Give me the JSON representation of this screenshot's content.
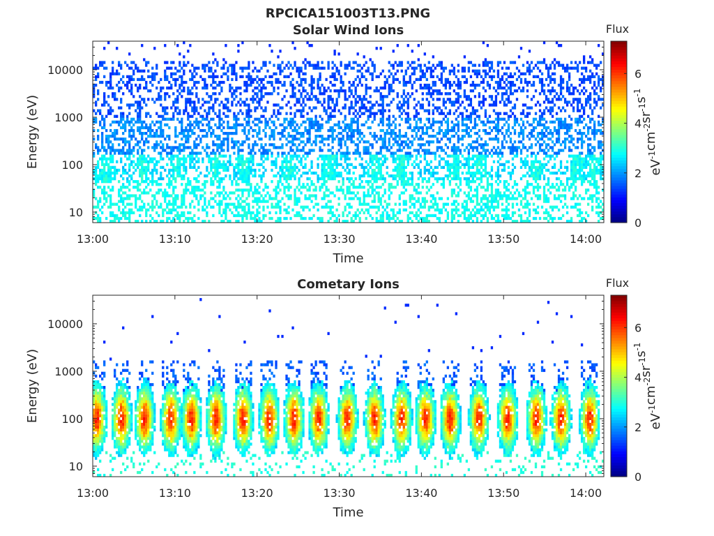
{
  "figure_title": "RPCICA151003T13.PNG",
  "colors": {
    "axes": "#262626",
    "colormap": "jet"
  },
  "chart_data": [
    {
      "type": "heatmap",
      "title": "Solar Wind Ions",
      "xlabel": "Time",
      "ylabel": "Energy (eV)",
      "yscale": "log",
      "ylim": [
        6,
        40000
      ],
      "xlim": [
        "13:00",
        "14:02"
      ],
      "x_ticks": [
        "13:00",
        "13:10",
        "13:20",
        "13:30",
        "13:40",
        "13:50",
        "14:00"
      ],
      "y_ticks": [
        {
          "value": 10,
          "label": "10"
        },
        {
          "value": 100,
          "label": "100"
        },
        {
          "value": 1000,
          "label": "1000"
        },
        {
          "value": 10000,
          "label": "10000"
        }
      ],
      "colorbar": {
        "title": "Flux",
        "label": "eV-1cm-2sr-1s-1",
        "range": [
          0,
          7.3
        ],
        "ticks": [
          0,
          2,
          4,
          6
        ]
      },
      "description_values": {
        "sparse_upper_band_flux": 1.3,
        "mid_band_flux": 2.6,
        "low_energy_flux": 3.0,
        "burst_minutes": [
          1.5,
          6,
          10.5,
          15,
          18.5,
          24,
          29,
          34.5,
          37.5,
          44,
          47,
          54,
          59,
          61
        ]
      }
    },
    {
      "type": "heatmap",
      "title": "Cometary Ions",
      "xlabel": "Time",
      "ylabel": "Energy (eV)",
      "yscale": "log",
      "ylim": [
        6,
        40000
      ],
      "xlim": [
        "13:00",
        "14:02"
      ],
      "x_ticks": [
        "13:00",
        "13:10",
        "13:20",
        "13:30",
        "13:40",
        "13:50",
        "14:00"
      ],
      "y_ticks": [
        {
          "value": 10,
          "label": "10"
        },
        {
          "value": 100,
          "label": "100"
        },
        {
          "value": 1000,
          "label": "1000"
        },
        {
          "value": 10000,
          "label": "10000"
        }
      ],
      "colorbar": {
        "title": "Flux",
        "label": "eV-1cm-2sr-1s-1",
        "range": [
          0,
          7.3
        ],
        "ticks": [
          0,
          2,
          4,
          6
        ]
      },
      "description_values": {
        "peak_energy_eV": 100,
        "peak_flux": 5.8,
        "burst_minutes": [
          0.5,
          3.5,
          6.3,
          9.5,
          12,
          15,
          18.3,
          21.5,
          24.5,
          27.5,
          31,
          34.3,
          37.6,
          40.5,
          43.5,
          47,
          50.5,
          54,
          57,
          60.5
        ]
      }
    }
  ]
}
